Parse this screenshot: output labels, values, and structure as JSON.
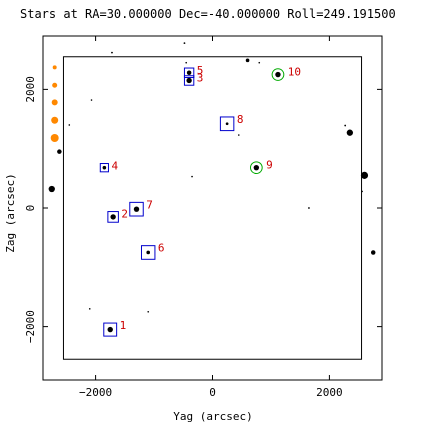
{
  "chart_data": {
    "type": "scatter",
    "title": "Stars at RA=30.000000 Dec=-40.000000 Roll=249.191500",
    "xlabel": "Yag (arcsec)",
    "ylabel": "Zag (arcsec)",
    "xlim": [
      -2900,
      2900
    ],
    "ylim": [
      -2900,
      2900
    ],
    "x_ticks": [
      -2000,
      0,
      2000
    ],
    "y_ticks": [
      -2000,
      0,
      2000
    ],
    "x_tick_labels": [
      "−2000",
      "0",
      "2000"
    ],
    "y_tick_labels": [
      "−2000",
      "0",
      "2000"
    ],
    "grid": false,
    "legend": "none",
    "fov_box": {
      "y_min": -2550,
      "y_max": 2550,
      "z_min": -2550,
      "z_max": 2550
    },
    "colors": {
      "star": "#000000",
      "guide_box": "#0000cc",
      "acq_circle": "#00aa00",
      "label": "#cc0000",
      "marker": "#ff8800",
      "frame": "#000000"
    },
    "stars": [
      {
        "y": -1750,
        "z": -2050,
        "mag": 9.0
      },
      {
        "y": -1700,
        "z": -150,
        "mag": 9.0
      },
      {
        "y": -400,
        "z": 2150,
        "mag": 9.0
      },
      {
        "y": -1850,
        "z": 680,
        "mag": 10.0
      },
      {
        "y": -400,
        "z": 2280,
        "mag": 9.5
      },
      {
        "y": -1100,
        "z": -750,
        "mag": 10.0
      },
      {
        "y": -1300,
        "z": -20,
        "mag": 9.0
      },
      {
        "y": 250,
        "z": 1420,
        "mag": 10.5
      },
      {
        "y": 750,
        "z": 680,
        "mag": 9.0
      },
      {
        "y": 1120,
        "z": 2250,
        "mag": 9.0
      },
      {
        "y": 2600,
        "z": 550,
        "mag": 8.0
      },
      {
        "y": 2350,
        "z": 1270,
        "mag": 8.5
      },
      {
        "y": -2750,
        "z": 320,
        "mag": 8.5
      },
      {
        "y": -2620,
        "z": 950,
        "mag": 9.5
      },
      {
        "y": 2750,
        "z": -750,
        "mag": 9.5
      },
      {
        "y": 600,
        "z": 2490,
        "mag": 10.0
      },
      {
        "y": -480,
        "z": 2780,
        "mag": 11.0
      },
      {
        "y": -1720,
        "z": 2620,
        "mag": 11.0
      },
      {
        "y": 2270,
        "z": 1390,
        "mag": 11.0
      },
      {
        "y": 1650,
        "z": 0,
        "mag": 11.0
      },
      {
        "y": -2070,
        "z": 1820,
        "mag": 11.5
      },
      {
        "y": -2450,
        "z": 1400,
        "mag": 11.5
      },
      {
        "y": -350,
        "z": 530,
        "mag": 11.5
      },
      {
        "y": 450,
        "z": 1230,
        "mag": 11.5
      },
      {
        "y": -1100,
        "z": -1750,
        "mag": 11.5
      },
      {
        "y": -2100,
        "z": -1700,
        "mag": 11.5
      },
      {
        "y": 800,
        "z": 2450,
        "mag": 11.5
      },
      {
        "y": -450,
        "z": 2450,
        "mag": 11.5
      },
      {
        "y": 2560,
        "z": 280,
        "mag": 11.5
      }
    ],
    "guide_boxes": [
      {
        "id": "1",
        "y": -1750,
        "z": -2050,
        "size": 220
      },
      {
        "id": "2",
        "y": -1700,
        "z": -150,
        "size": 180
      },
      {
        "id": "3",
        "y": -400,
        "z": 2150,
        "size": 160
      },
      {
        "id": "4",
        "y": -1850,
        "z": 680,
        "size": 140
      },
      {
        "id": "5",
        "y": -400,
        "z": 2280,
        "size": 160
      },
      {
        "id": "6",
        "y": -1100,
        "z": -750,
        "size": 230
      },
      {
        "id": "7",
        "y": -1300,
        "z": -20,
        "size": 230
      },
      {
        "id": "8",
        "y": 250,
        "z": 1420,
        "size": 230
      }
    ],
    "acq_circles": [
      {
        "id": "9",
        "y": 750,
        "z": 680,
        "radius": 100
      },
      {
        "id": "10",
        "y": 1120,
        "z": 2250,
        "radius": 100
      }
    ],
    "markers": [
      {
        "y": -2700,
        "z": 2370,
        "size": 2
      },
      {
        "y": -2700,
        "z": 2070,
        "size": 2.5
      },
      {
        "y": -2700,
        "z": 1780,
        "size": 3
      },
      {
        "y": -2700,
        "z": 1480,
        "size": 3.5
      },
      {
        "y": -2700,
        "z": 1180,
        "size": 4
      }
    ]
  }
}
